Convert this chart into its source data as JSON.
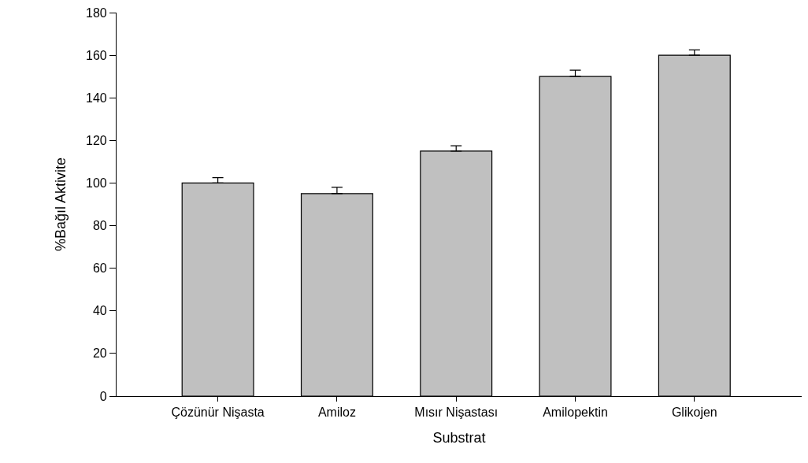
{
  "chart_data": {
    "type": "bar",
    "xlabel": "Substrat",
    "ylabel": "%Bağıl Aktivite",
    "categories": [
      "Çözünür Nişasta",
      "Amiloz",
      "Mısır Nişastası",
      "Amilopektin",
      "Glikojen"
    ],
    "values": [
      100,
      95,
      115,
      150,
      160
    ],
    "errors": [
      [
        100,
        102.5
      ],
      [
        95,
        98
      ],
      [
        115,
        117.5
      ],
      [
        150,
        153
      ],
      [
        160,
        162.5
      ]
    ],
    "color": "#c0c0c0",
    "ylim": [
      0,
      180
    ],
    "yticks": [
      0,
      20,
      40,
      60,
      80,
      100,
      120,
      140,
      160,
      180
    ]
  }
}
